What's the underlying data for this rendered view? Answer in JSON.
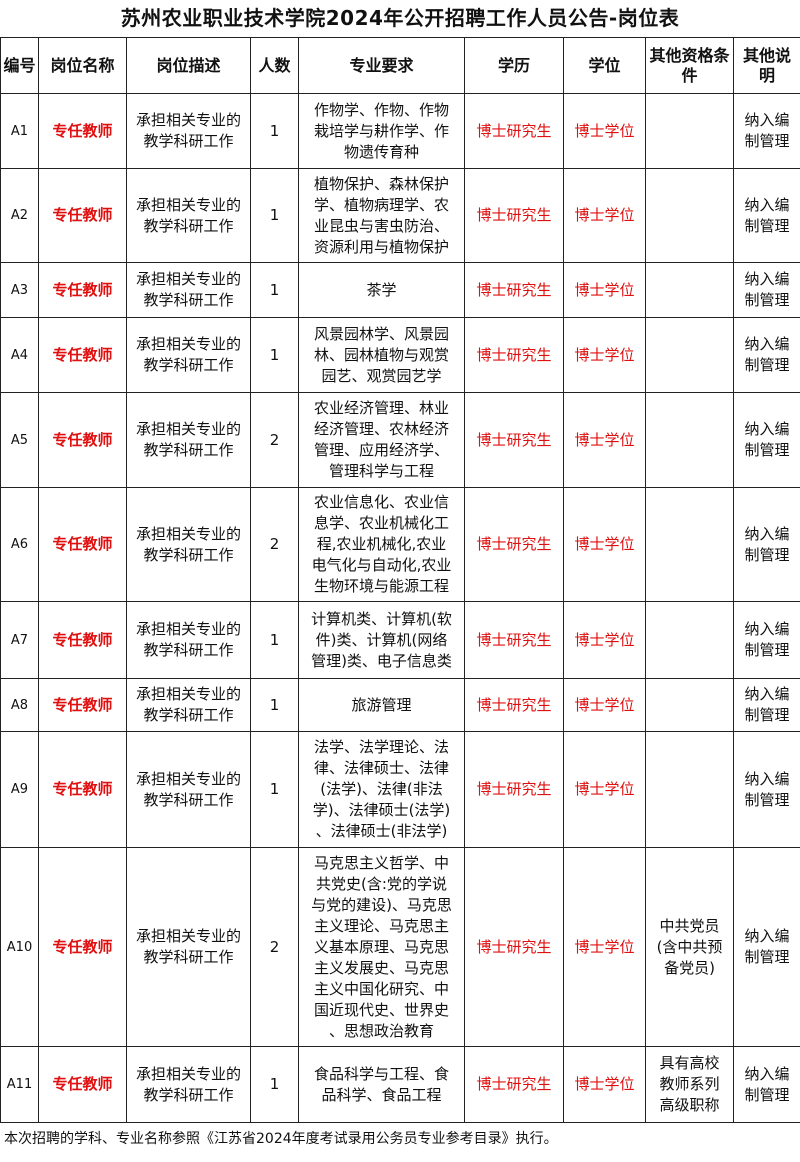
{
  "title": "苏州农业职业技术学院2024年公开招聘工作人员公告-岗位表",
  "headers": [
    "编号",
    "岗位名称",
    "岗位描述",
    "人数",
    "专业要求",
    "学历",
    "学位",
    "其他资格条件",
    "其他说明"
  ],
  "rows": [
    {
      "id": "A1",
      "name": "专任教师",
      "desc": [
        "承担相关专业的",
        "教学科研工作"
      ],
      "count": "1",
      "major": [
        "作物学、作物、作物",
        "栽培学与耕作学、作",
        "物遗传育种"
      ],
      "edu": "博士研究生",
      "degree": "博士学位",
      "other": [],
      "note": [
        "纳入编",
        "制管理"
      ]
    },
    {
      "id": "A2",
      "name": "专任教师",
      "desc": [
        "承担相关专业的",
        "教学科研工作"
      ],
      "count": "1",
      "major": [
        "植物保护、森林保护",
        "学、植物病理学、农",
        "业昆虫与害虫防治、",
        "资源利用与植物保护"
      ],
      "edu": "博士研究生",
      "degree": "博士学位",
      "other": [],
      "note": [
        "纳入编",
        "制管理"
      ]
    },
    {
      "id": "A3",
      "name": "专任教师",
      "desc": [
        "承担相关专业的",
        "教学科研工作"
      ],
      "count": "1",
      "major": [
        "茶学"
      ],
      "edu": "博士研究生",
      "degree": "博士学位",
      "other": [],
      "note": [
        "纳入编",
        "制管理"
      ]
    },
    {
      "id": "A4",
      "name": "专任教师",
      "desc": [
        "承担相关专业的",
        "教学科研工作"
      ],
      "count": "1",
      "major": [
        "风景园林学、风景园",
        "林、园林植物与观赏",
        "园艺、观赏园艺学"
      ],
      "edu": "博士研究生",
      "degree": "博士学位",
      "other": [],
      "note": [
        "纳入编",
        "制管理"
      ]
    },
    {
      "id": "A5",
      "name": "专任教师",
      "desc": [
        "承担相关专业的",
        "教学科研工作"
      ],
      "count": "2",
      "major": [
        "农业经济管理、林业",
        "经济管理、农林经济",
        "管理、应用经济学、",
        "管理科学与工程"
      ],
      "edu": "博士研究生",
      "degree": "博士学位",
      "other": [],
      "note": [
        "纳入编",
        "制管理"
      ]
    },
    {
      "id": "A6",
      "name": "专任教师",
      "desc": [
        "承担相关专业的",
        "教学科研工作"
      ],
      "count": "2",
      "major": [
        "农业信息化、农业信",
        "息学、农业机械化工",
        "程,农业机械化,农业",
        "电气化与自动化,农业",
        "生物环境与能源工程"
      ],
      "edu": "博士研究生",
      "degree": "博士学位",
      "other": [],
      "note": [
        "纳入编",
        "制管理"
      ]
    },
    {
      "id": "A7",
      "name": "专任教师",
      "desc": [
        "承担相关专业的",
        "教学科研工作"
      ],
      "count": "1",
      "major": [
        "计算机类、计算机(软",
        "件)类、计算机(网络",
        "管理)类、电子信息类"
      ],
      "edu": "博士研究生",
      "degree": "博士学位",
      "other": [],
      "note": [
        "纳入编",
        "制管理"
      ]
    },
    {
      "id": "A8",
      "name": "专任教师",
      "desc": [
        "承担相关专业的",
        "教学科研工作"
      ],
      "count": "1",
      "major": [
        "旅游管理"
      ],
      "edu": "博士研究生",
      "degree": "博士学位",
      "other": [],
      "note": [
        "纳入编",
        "制管理"
      ]
    },
    {
      "id": "A9",
      "name": "专任教师",
      "desc": [
        "承担相关专业的",
        "教学科研工作"
      ],
      "count": "1",
      "major": [
        "法学、法学理论、法",
        "律、法律硕士、法律",
        "(法学)、法律(非法",
        "学)、法律硕士(法学)",
        "、法律硕士(非法学)"
      ],
      "edu": "博士研究生",
      "degree": "博士学位",
      "other": [],
      "note": [
        "纳入编",
        "制管理"
      ]
    },
    {
      "id": "A10",
      "name": "专任教师",
      "desc": [
        "承担相关专业的",
        "教学科研工作"
      ],
      "count": "2",
      "major": [
        "马克思主义哲学、中",
        "共党史(含:党的学说",
        "与党的建设)、马克思",
        "主义理论、马克思主",
        "义基本原理、马克思",
        "主义发展史、马克思",
        "主义中国化研究、中",
        "国近现代史、世界史",
        "、思想政治教育"
      ],
      "edu": "博士研究生",
      "degree": "博士学位",
      "other": [
        "中共党员",
        "(含中共预",
        "备党员)"
      ],
      "note": [
        "纳入编",
        "制管理"
      ]
    },
    {
      "id": "A11",
      "name": "专任教师",
      "desc": [
        "承担相关专业的",
        "教学科研工作"
      ],
      "count": "1",
      "major": [
        "食品科学与工程、食",
        "品科学、食品工程"
      ],
      "edu": "博士研究生",
      "degree": "博士学位",
      "other": [
        "具有高校",
        "教师系列",
        "高级职称"
      ],
      "note": [
        "纳入编",
        "制管理"
      ]
    }
  ],
  "footer": "本次招聘的学科、专业名称参照《江苏省2024年度考试录用公务员专业参考目录》执行。",
  "colors": {
    "accent_red": "#e01010",
    "border": "#222222"
  }
}
